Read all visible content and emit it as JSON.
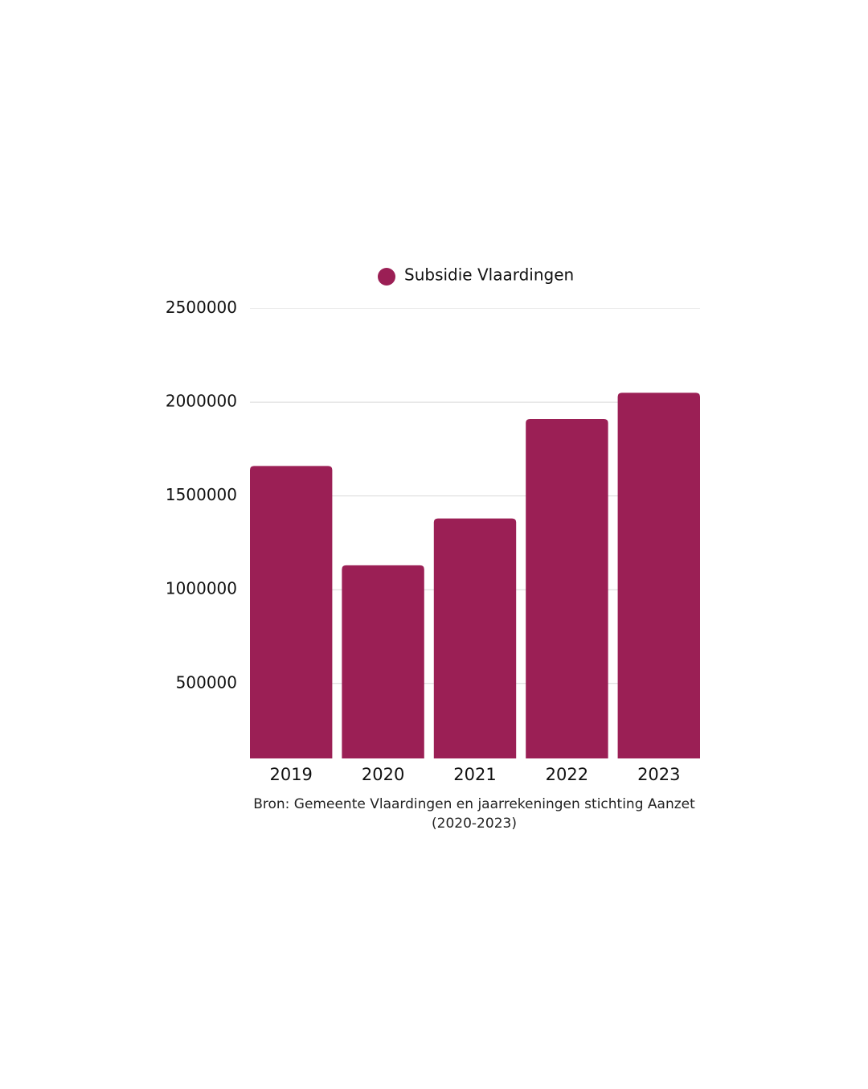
{
  "chart_data": {
    "type": "bar",
    "categories": [
      "2019",
      "2020",
      "2021",
      "2022",
      "2023"
    ],
    "series": [
      {
        "name": "Subsidie Vlaardingen",
        "values": [
          1660000,
          1130000,
          1380000,
          1910000,
          2050000
        ],
        "color": "#9B1F55"
      }
    ],
    "yticks": [
      500000,
      1000000,
      1500000,
      2000000,
      2500000
    ],
    "ytick_labels": [
      "500000",
      "1000000",
      "1500000",
      "2000000",
      "2500000"
    ],
    "ylim": [
      100000,
      2500000
    ],
    "grid": true,
    "legend_position": "top-center",
    "title": "",
    "xlabel": "",
    "ylabel": ""
  },
  "caption": {
    "line1": "Bron: Gemeente Vlaardingen en jaarrekeningen stichting Aanzet",
    "line2": "(2020-2023)"
  },
  "colors": {
    "bar": "#9B1F55",
    "grid": "#d9d9d9",
    "text": "#111111"
  }
}
